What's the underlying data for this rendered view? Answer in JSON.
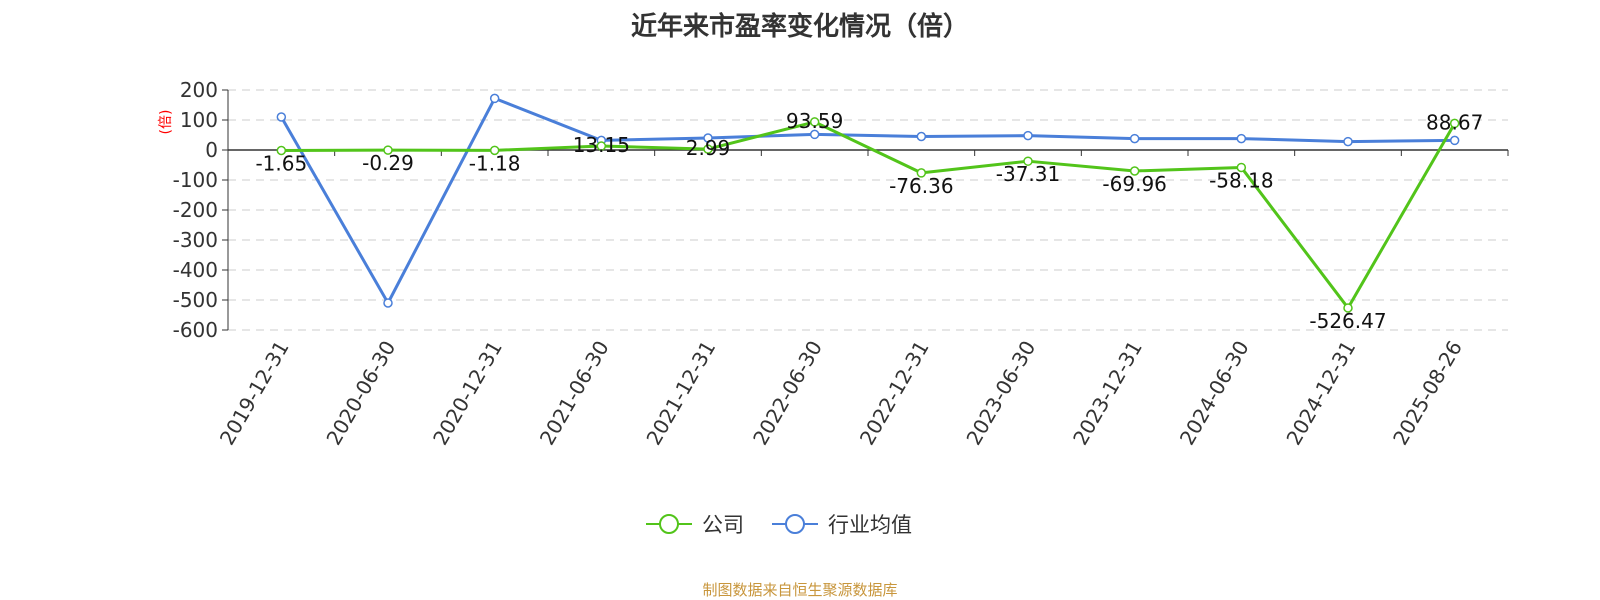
{
  "title": "近年来市盈率变化情况（倍）",
  "source": "制图数据来自恒生聚源数据库",
  "chart_data": {
    "type": "line",
    "title": "近年来市盈率变化情况（倍）",
    "ylabel": "(倍)",
    "ylim": [
      -600,
      200
    ],
    "yticks": [
      200,
      100,
      0,
      -100,
      -200,
      -300,
      -400,
      -500,
      -600
    ],
    "categories": [
      "2019-12-31",
      "2020-06-30",
      "2020-12-31",
      "2021-06-30",
      "2021-12-31",
      "2022-06-30",
      "2022-12-31",
      "2023-06-30",
      "2023-12-31",
      "2024-06-30",
      "2024-12-31",
      "2025-08-26"
    ],
    "grid": true,
    "legend_position": "bottom",
    "series": [
      {
        "name": "公司",
        "color": "#52c41a",
        "values": [
          -1.65,
          -0.29,
          -1.18,
          13.15,
          2.99,
          93.59,
          -76.36,
          -37.31,
          -69.96,
          -58.18,
          -526.47,
          88.67
        ],
        "labels": [
          "-1.65",
          "-0.29",
          "-1.18",
          "13.15",
          "2.99",
          "93.59",
          "-76.36",
          "-37.31",
          "-69.96",
          "-58.18",
          "-526.47",
          "88.67"
        ]
      },
      {
        "name": "行业均值",
        "color": "#4a7fd9",
        "values": [
          110,
          -510,
          172,
          32,
          40,
          52,
          45,
          48,
          38,
          38,
          28,
          32
        ]
      }
    ]
  }
}
